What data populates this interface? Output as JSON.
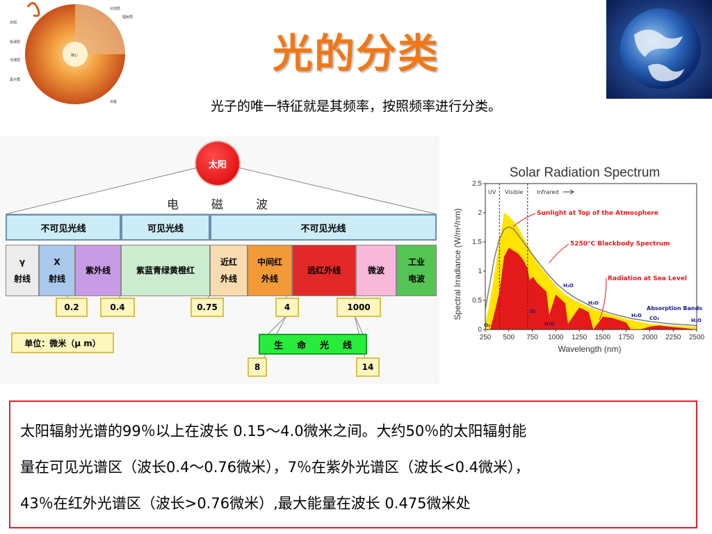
{
  "header": {
    "title": "光的分类",
    "subtitle": "光子的唯一特征就是其频率，按照频率进行分类。"
  },
  "sun_illustration": {
    "labels": [
      "对流层",
      "辐射层",
      "日冕",
      "色球层",
      "光球层",
      "黑子群",
      "日珥",
      "核心"
    ]
  },
  "em_diagram": {
    "sun_label": "太阳",
    "wave_label": [
      "电",
      "磁",
      "波"
    ],
    "top_bands": [
      "不可见光线",
      "可见光线",
      "不可见光线"
    ],
    "sub_bands": [
      {
        "lines": [
          "γ",
          "射线"
        ],
        "color": "#ececec"
      },
      {
        "lines": [
          "X",
          "射线"
        ],
        "color": "#a8c8ec"
      },
      {
        "lines": [
          "紫外线"
        ],
        "color": "#c89ce4"
      },
      {
        "lines": [
          "紫蓝青绿黄橙红"
        ],
        "color": "#ccecd0"
      },
      {
        "lines": [
          "近红",
          "外线"
        ],
        "color": "#f8dcb0"
      },
      {
        "lines": [
          "中间红",
          "外线"
        ],
        "color": "#f39a38"
      },
      {
        "lines": [
          "远红外线"
        ],
        "color": "#e22828"
      },
      {
        "lines": [
          "微波"
        ],
        "color": "#f8b8d8"
      },
      {
        "lines": [
          "工业",
          "电波"
        ],
        "color": "#54c454"
      }
    ],
    "boundaries": [
      "0.2",
      "0.4",
      "0.75",
      "4",
      "1000"
    ],
    "unit_label": "单位：微米（μ m）",
    "life_band": [
      "生",
      "命",
      "光",
      "线"
    ],
    "life_range": [
      "8",
      "14"
    ]
  },
  "spectrum_chart": {
    "title": "Solar Radiation Spectrum",
    "xlabel": "Wavelength (nm)",
    "ylabel": "Spectral Irradiance (W/m²/nm)",
    "region_labels": [
      "UV",
      "Visible",
      "Infrared"
    ],
    "annotations": [
      "Sunlight at Top of the Atmosphere",
      "5250°C Blackbody Spectrum",
      "Radiation at Sea Level",
      "Absorption Bands"
    ],
    "molecule_labels": [
      "H₂O",
      "H₂O",
      "H₂O",
      "H₂O",
      "O₂",
      "H₂O",
      "O₃",
      "CO₂"
    ],
    "colors": {
      "top_atmosphere": "#ffe400",
      "sea_level": "#e41a1a",
      "blackbody": "#7a7a7a",
      "annotation": "#e41a1a",
      "molecule": "#1c1c8c"
    }
  },
  "chart_data": {
    "type": "area",
    "title": "Solar Radiation Spectrum",
    "xlabel": "Wavelength (nm)",
    "ylabel": "Spectral Irradiance (W/m²/nm)",
    "xlim": [
      250,
      2500
    ],
    "ylim": [
      0,
      2.5
    ],
    "x_ticks": [
      "250",
      "500",
      "750",
      "1000",
      "1250",
      "1500",
      "1750",
      "2000",
      "2250",
      "2500"
    ],
    "y_ticks": [
      "0",
      "0.5",
      "1",
      "1.5",
      "2",
      "2.5"
    ],
    "grid": false,
    "series": [
      {
        "name": "Sunlight at Top of the Atmosphere",
        "x": [
          250,
          300,
          350,
          400,
          450,
          500,
          550,
          600,
          650,
          700,
          800,
          900,
          1000,
          1100,
          1200,
          1400,
          1600,
          1800,
          2000,
          2200,
          2500
        ],
        "values": [
          0.1,
          0.5,
          1.0,
          1.5,
          2.0,
          1.95,
          1.85,
          1.75,
          1.6,
          1.45,
          1.15,
          0.95,
          0.75,
          0.6,
          0.5,
          0.35,
          0.25,
          0.16,
          0.1,
          0.07,
          0.05
        ]
      },
      {
        "name": "5250°C Blackbody Spectrum",
        "x": [
          250,
          300,
          350,
          400,
          450,
          500,
          550,
          600,
          700,
          800,
          900,
          1000,
          1100,
          1200,
          1400,
          1600,
          1800,
          2000,
          2200,
          2500
        ],
        "values": [
          0.35,
          0.8,
          1.25,
          1.55,
          1.72,
          1.76,
          1.72,
          1.62,
          1.4,
          1.18,
          0.98,
          0.8,
          0.66,
          0.55,
          0.38,
          0.27,
          0.19,
          0.14,
          0.1,
          0.07
        ]
      },
      {
        "name": "Radiation at Sea Level",
        "x": [
          300,
          350,
          400,
          450,
          500,
          550,
          600,
          650,
          700,
          720,
          760,
          800,
          900,
          930,
          1000,
          1100,
          1130,
          1250,
          1350,
          1400,
          1500,
          1600,
          1750,
          1800,
          1900,
          2000,
          2100,
          2200,
          2400,
          2500
        ],
        "values": [
          0.0,
          0.3,
          0.65,
          1.25,
          1.4,
          1.35,
          1.3,
          1.2,
          1.05,
          0.85,
          0.9,
          0.8,
          0.65,
          0.25,
          0.6,
          0.45,
          0.1,
          0.38,
          0.3,
          0.0,
          0.22,
          0.2,
          0.12,
          0.0,
          0.0,
          0.05,
          0.07,
          0.05,
          0.02,
          0.0
        ]
      }
    ]
  },
  "note": {
    "lines": [
      "太阳辐射光谱的99％以上在波长 0.15～4.0微米之间。大约50％的太阳辐射能",
      "量在可见光谱区（波长0.4～0.76微米），7％在紫外光谱区（波长<0.4微米），",
      "43％在红外光谱区（波长>0.76微米）,最大能量在波长 0.475微米处"
    ]
  }
}
